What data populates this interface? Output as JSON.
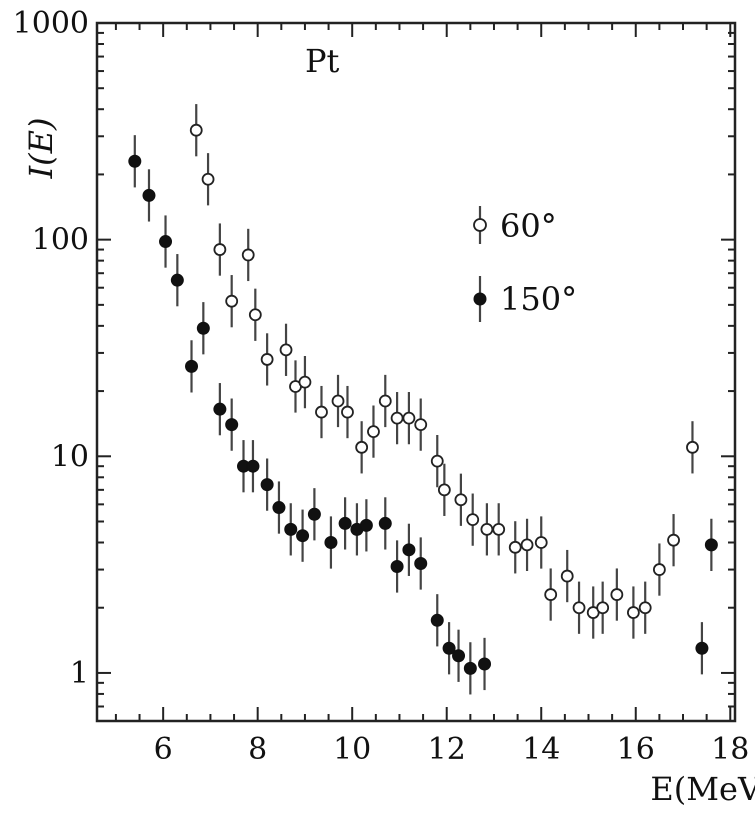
{
  "chart_data": {
    "type": "scatter",
    "xlabel": "E(MeV)",
    "ylabel": "I(E)",
    "xlim": [
      4.6,
      18.1
    ],
    "ylim": [
      0.6,
      1000
    ],
    "y_scale": "log",
    "x_ticks": [
      6,
      8,
      10,
      12,
      14,
      16,
      18
    ],
    "y_ticks": [
      1,
      10,
      100,
      1000
    ],
    "y_tick_labels": [
      "1",
      "10",
      "100",
      "1000"
    ],
    "annotation": "Pt",
    "legend_placement": "upper-right",
    "grid": false,
    "series": [
      {
        "name": "60°",
        "marker": "open-circle",
        "x": [
          6.7,
          6.95,
          7.2,
          7.45,
          7.8,
          7.95,
          8.2,
          8.6,
          8.8,
          9.0,
          9.35,
          9.7,
          9.9,
          10.2,
          10.45,
          10.7,
          10.95,
          11.2,
          11.45,
          11.8,
          11.95,
          12.3,
          12.55,
          12.85,
          13.1,
          13.45,
          13.7,
          14.0,
          14.2,
          14.55,
          14.8,
          15.1,
          15.3,
          15.6,
          15.95,
          16.2,
          16.5,
          16.8,
          17.2
        ],
        "y": [
          320,
          190,
          90,
          52,
          85,
          45,
          28,
          31,
          21,
          22,
          16,
          18,
          16,
          11,
          13,
          18,
          15,
          15,
          14,
          9.5,
          7.0,
          6.3,
          5.1,
          4.6,
          4.6,
          3.8,
          3.9,
          4.0,
          2.3,
          2.8,
          2.0,
          1.9,
          2.0,
          2.3,
          1.9,
          2.0,
          3.0,
          4.1,
          11
        ]
      },
      {
        "name": "150°",
        "marker": "filled-circle",
        "x": [
          5.4,
          5.7,
          6.05,
          6.3,
          6.6,
          6.85,
          7.2,
          7.45,
          7.7,
          7.9,
          8.2,
          8.45,
          8.7,
          8.95,
          9.2,
          9.55,
          9.85,
          10.1,
          10.3,
          10.7,
          10.95,
          11.2,
          11.45,
          11.8,
          12.05,
          12.25,
          12.5,
          12.8,
          17.4,
          17.6
        ],
        "y": [
          230,
          160,
          98,
          65,
          26,
          39,
          16.5,
          14,
          9,
          9,
          7.4,
          5.8,
          4.6,
          4.3,
          5.4,
          4.0,
          4.9,
          4.6,
          4.8,
          4.9,
          3.1,
          3.7,
          3.2,
          1.75,
          1.3,
          1.2,
          1.05,
          1.1,
          1.3,
          3.9
        ]
      }
    ]
  }
}
